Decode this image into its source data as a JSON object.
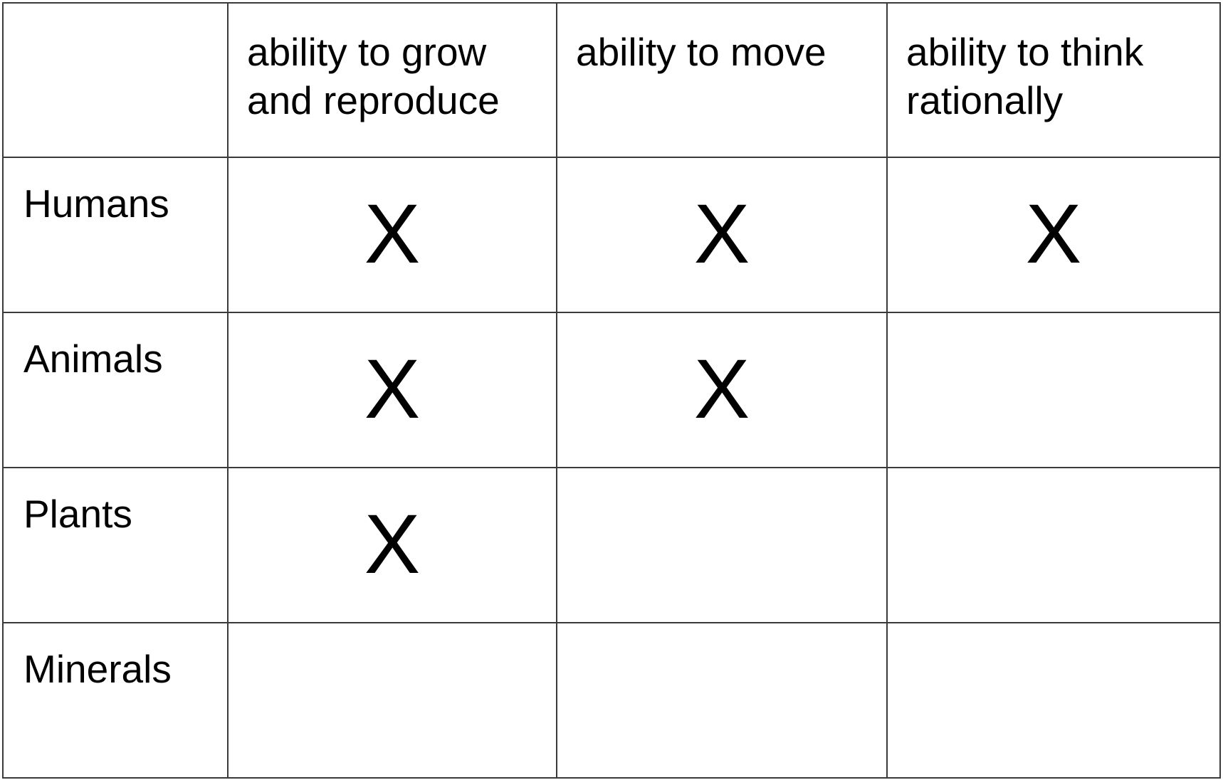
{
  "table": {
    "columns": [
      "ability to grow and reproduce",
      "ability to move",
      "ability to think rationally"
    ],
    "rows": [
      {
        "label": "Humans",
        "marks": [
          "X",
          "X",
          "X"
        ]
      },
      {
        "label": "Animals",
        "marks": [
          "X",
          "X",
          ""
        ]
      },
      {
        "label": "Plants",
        "marks": [
          "X",
          "",
          ""
        ]
      },
      {
        "label": "Minerals",
        "marks": [
          "",
          "",
          ""
        ]
      }
    ]
  }
}
